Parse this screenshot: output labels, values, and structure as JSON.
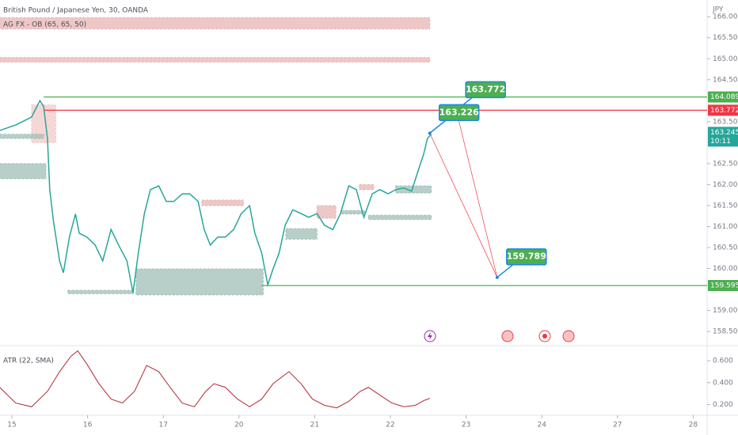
{
  "title": "British Pound / Japanese Yen, 30, OANDA",
  "indicator": "AG FX - OB (65, 65, 50)",
  "currency": "JPY",
  "countdown": "10:11",
  "chart_data": [
    {
      "type": "line",
      "color": "#26a69a",
      "xlim": [
        -0.157,
        9.184
      ],
      "ylim": [
        158.2,
        166.4
      ],
      "x": [
        -0.16,
        0.05,
        0.26,
        0.37,
        0.42,
        0.47,
        0.5,
        0.55,
        0.63,
        0.68,
        0.76,
        0.84,
        0.89,
        0.99,
        1.1,
        1.2,
        1.31,
        1.41,
        1.52,
        1.6,
        1.67,
        1.75,
        1.83,
        1.94,
        2.04,
        2.14,
        2.25,
        2.35,
        2.46,
        2.54,
        2.62,
        2.72,
        2.82,
        2.93,
        3.03,
        3.14,
        3.21,
        3.3,
        3.38,
        3.45,
        3.53,
        3.61,
        3.71,
        3.82,
        3.92,
        4.03,
        4.13,
        4.24,
        4.34,
        4.45,
        4.55,
        4.65,
        4.76,
        4.86,
        4.97,
        5.07,
        5.18,
        5.28,
        5.37,
        5.44,
        5.49,
        5.54
      ],
      "values": [
        163.29,
        163.42,
        163.61,
        164.0,
        163.86,
        163.1,
        161.88,
        161.12,
        160.18,
        159.9,
        160.75,
        161.3,
        160.84,
        160.75,
        160.56,
        160.18,
        160.93,
        160.56,
        160.18,
        159.42,
        160.37,
        161.31,
        161.88,
        161.97,
        161.6,
        161.6,
        161.78,
        161.78,
        161.6,
        160.93,
        160.56,
        160.75,
        160.75,
        160.93,
        161.31,
        161.5,
        160.84,
        160.37,
        159.61,
        159.99,
        160.37,
        161.03,
        161.4,
        161.31,
        161.22,
        161.31,
        161.03,
        160.93,
        161.31,
        161.97,
        161.88,
        161.22,
        161.78,
        161.88,
        161.78,
        161.88,
        161.92,
        161.84,
        162.35,
        162.73,
        163.1,
        163.2
      ],
      "yticks": [
        {
          "value": 158.5,
          "label": "158.500"
        },
        {
          "value": 159,
          "label": "159.000"
        },
        {
          "value": 160,
          "label": "160.000"
        },
        {
          "value": 160.5,
          "label": "160.500"
        },
        {
          "value": 161,
          "label": "161.000"
        },
        {
          "value": 161.5,
          "label": "161.500"
        },
        {
          "value": 162,
          "label": "162.000"
        },
        {
          "value": 162.5,
          "label": "162.500"
        },
        {
          "value": 163.5,
          "label": "163.500"
        },
        {
          "value": 164.5,
          "label": "164.500"
        },
        {
          "value": 165,
          "label": "165.000"
        },
        {
          "value": 165.5,
          "label": "165.500"
        },
        {
          "value": 166,
          "label": "166.000"
        }
      ],
      "zones": [
        {
          "x": [
            -0.16,
            5.52
          ],
          "y": [
            165.71,
            165.98
          ],
          "color": "#e8b4b4"
        },
        {
          "x": [
            -0.16,
            5.52
          ],
          "y": [
            164.92,
            165.03
          ],
          "color": "#e8b4b4"
        },
        {
          "x": [
            0.26,
            0.58
          ],
          "y": [
            163.0,
            163.9
          ],
          "color": "#f3c9c9"
        },
        {
          "x": [
            -0.16,
            0.45
          ],
          "y": [
            162.14,
            162.5
          ],
          "color": "#9fbfb5"
        },
        {
          "x": [
            -0.16,
            0.42
          ],
          "y": [
            163.1,
            163.2
          ],
          "color": "#9fbfb5"
        },
        {
          "x": [
            1.64,
            3.32
          ],
          "y": [
            159.37,
            159.99
          ],
          "color": "#9fbfb5"
        },
        {
          "x": [
            0.74,
            1.6
          ],
          "y": [
            159.4,
            159.48
          ],
          "color": "#9fbfb5"
        },
        {
          "x": [
            2.51,
            3.06
          ],
          "y": [
            161.5,
            161.63
          ],
          "color": "#e8b4b4"
        },
        {
          "x": [
            3.62,
            4.03
          ],
          "y": [
            160.7,
            160.95
          ],
          "color": "#9fbfb5"
        },
        {
          "x": [
            4.03,
            4.28
          ],
          "y": [
            161.2,
            161.5
          ],
          "color": "#e8b4b4"
        },
        {
          "x": [
            4.35,
            4.66
          ],
          "y": [
            161.3,
            161.38
          ],
          "color": "#9fbfb5"
        },
        {
          "x": [
            4.59,
            4.78
          ],
          "y": [
            161.88,
            162.0
          ],
          "color": "#e8b4b4"
        },
        {
          "x": [
            4.71,
            5.54
          ],
          "y": [
            161.17,
            161.27
          ],
          "color": "#9fbfb5"
        },
        {
          "x": [
            5.07,
            5.54
          ],
          "y": [
            161.8,
            161.97
          ],
          "color": "#9fbfb5"
        }
      ],
      "levels": [
        {
          "value": 164.089,
          "x_start": 0.42,
          "color": "#4caf50"
        },
        {
          "value": 163.772,
          "x_start": 0.42,
          "color": "#f23645"
        },
        {
          "value": 159.595,
          "x_start": 3.3,
          "color": "#4caf50"
        }
      ],
      "last_price": 163.245,
      "annotations": [
        {
          "value": 163.772,
          "x": 5.87
        },
        {
          "value": 163.226,
          "x": 5.52
        },
        {
          "value": 159.789,
          "x": 6.41
        }
      ]
    },
    {
      "type": "line",
      "title": "ATR (22, SMA)",
      "color": "#b22833",
      "xlim": [
        -0.157,
        9.184
      ],
      "ylim": [
        0.11,
        0.73
      ],
      "x": [
        -0.16,
        0.05,
        0.26,
        0.47,
        0.63,
        0.78,
        0.87,
        0.99,
        1.15,
        1.31,
        1.46,
        1.62,
        1.78,
        1.94,
        2.09,
        2.25,
        2.41,
        2.56,
        2.67,
        2.82,
        2.98,
        3.14,
        3.3,
        3.45,
        3.66,
        3.82,
        3.97,
        4.13,
        4.29,
        4.45,
        4.6,
        4.71,
        4.86,
        5.02,
        5.18,
        5.33,
        5.44,
        5.52
      ],
      "values": [
        0.357,
        0.214,
        0.18,
        0.32,
        0.5,
        0.64,
        0.69,
        0.57,
        0.39,
        0.25,
        0.214,
        0.32,
        0.557,
        0.5,
        0.357,
        0.214,
        0.18,
        0.32,
        0.39,
        0.357,
        0.25,
        0.18,
        0.25,
        0.39,
        0.5,
        0.39,
        0.25,
        0.193,
        0.17,
        0.229,
        0.32,
        0.357,
        0.286,
        0.214,
        0.18,
        0.193,
        0.236,
        0.257
      ],
      "yticks": [
        {
          "value": 0.2,
          "label": "0.200"
        },
        {
          "value": 0.4,
          "label": "0.400"
        },
        {
          "value": 0.6,
          "label": "0.600"
        }
      ],
      "xticks": [
        {
          "value": 0,
          "label": "15"
        },
        {
          "value": 1,
          "label": "16"
        },
        {
          "value": 2,
          "label": "17"
        },
        {
          "value": 3,
          "label": "20"
        },
        {
          "value": 4,
          "label": "21"
        },
        {
          "value": 5,
          "label": "22"
        },
        {
          "value": 6,
          "label": "23"
        },
        {
          "value": 7,
          "label": "24"
        },
        {
          "value": 8,
          "label": "27"
        },
        {
          "value": 9,
          "label": "28"
        }
      ]
    }
  ]
}
